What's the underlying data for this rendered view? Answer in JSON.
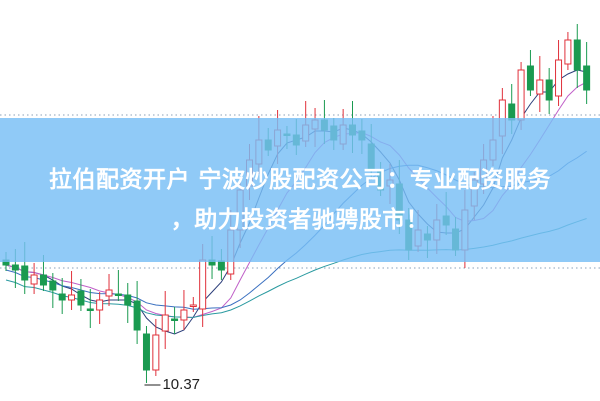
{
  "title_line1": "拉伯配资开户 宁波炒股配资公司：专业配资服务",
  "title_line2": "，助力投资者驰骋股市！",
  "chart_data": {
    "type": "candlestick",
    "title": "",
    "ylim": [
      10.19,
      14.2
    ],
    "grid": false,
    "reference_lines": [
      13.05,
      11.52
    ],
    "low_annotation": "10.37",
    "low_value": 10.37,
    "closes": [
      11.55,
      11.5,
      11.4,
      11.45,
      11.35,
      11.3,
      11.2,
      11.25,
      11.15,
      11.1,
      11.2,
      11.3,
      11.25,
      11.15,
      10.9,
      10.5,
      10.85,
      11.05,
      11.0,
      11.1,
      11.15,
      11.6,
      11.55,
      11.5,
      11.9,
      12.3,
      12.6,
      12.8,
      12.7,
      12.9,
      12.85,
      12.75,
      12.95,
      13.0,
      12.9,
      12.8,
      12.95,
      12.85,
      12.8,
      12.5,
      12.3,
      12.4,
      12.0,
      11.7,
      11.9,
      11.8,
      12.0,
      11.95,
      11.7,
      12.1,
      12.4,
      12.6,
      12.8,
      13.2,
      13.0,
      13.5,
      13.3,
      13.4,
      13.2,
      13.6,
      13.8,
      13.5,
      13.3
    ],
    "up_color": "#e0303a",
    "down_color": "#1a9a50",
    "moving_averages": [
      {
        "period": 5,
        "color": "#2c3e7a"
      },
      {
        "period": 10,
        "color": "#c060c8"
      },
      {
        "period": 20,
        "color": "#3a70c0"
      },
      {
        "period": 60,
        "color": "#2a9aa0"
      }
    ]
  }
}
